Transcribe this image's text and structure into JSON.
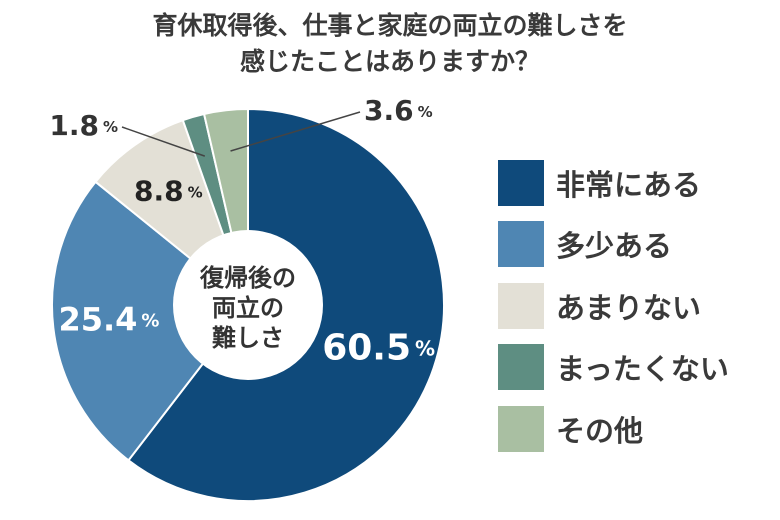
{
  "title": {
    "line1": "育休取得後、仕事と家庭の両立の難しさを",
    "line2": "感じたことはありますか？"
  },
  "center_label": [
    "復帰後の",
    "両立の",
    "難しさ"
  ],
  "chart_data": {
    "type": "pie",
    "style": "donut",
    "unit": "%",
    "categories": [
      "非常にある",
      "多少ある",
      "あまりない",
      "まったくない",
      "その他"
    ],
    "values": [
      60.5,
      25.4,
      8.8,
      1.8,
      3.6
    ],
    "colors": [
      "#0f4a7b",
      "#4f86b3",
      "#e3e0d6",
      "#5e8e82",
      "#a9bfa2"
    ],
    "label_colors": [
      "#ffffff",
      "#ffffff",
      "#222222",
      "#333333",
      "#333333"
    ],
    "legend_position": "right"
  }
}
